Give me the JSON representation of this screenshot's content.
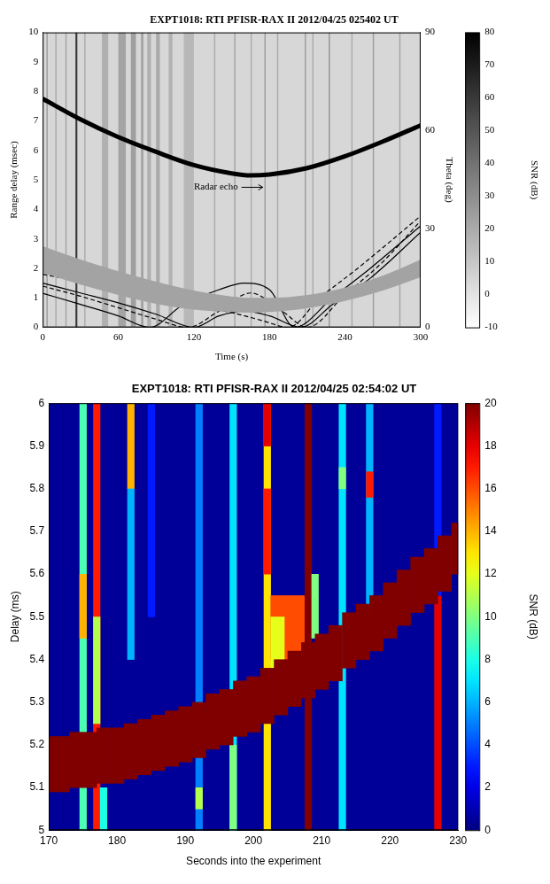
{
  "chart_data": [
    {
      "type": "line",
      "title": "EXPT1018: RTI PFISR-RAX II 2012/04/25 025402 UT",
      "x_label": "Time (s)",
      "y_label": "Range delay (msec)",
      "y2_label": "Theta (deg)",
      "xlim": [
        0,
        300
      ],
      "xticks": [
        0,
        60,
        120,
        180,
        240,
        300
      ],
      "ylim": [
        0,
        10
      ],
      "yticks": [
        0,
        1,
        2,
        3,
        4,
        5,
        6,
        7,
        8,
        9,
        10
      ],
      "y2lim": [
        0,
        90
      ],
      "y2ticks": [
        0,
        30,
        60,
        90
      ],
      "grid": false,
      "colorbar": {
        "label": "SNR (dB)",
        "range": [
          -10,
          80
        ],
        "ticks": [
          -10,
          0,
          10,
          20,
          30,
          40,
          50,
          60,
          70,
          80
        ]
      },
      "stripes": [
        {
          "x": [
            0,
            300
          ],
          "snr": 4
        },
        {
          "x": [
            3,
            4
          ],
          "snr": 25
        },
        {
          "x": [
            10,
            11
          ],
          "snr": 20
        },
        {
          "x": [
            18,
            19
          ],
          "snr": 22
        },
        {
          "x": [
            26,
            27.5
          ],
          "snr": 60
        },
        {
          "x": [
            33,
            34
          ],
          "snr": 20
        },
        {
          "x": [
            47,
            52
          ],
          "snr": 18
        },
        {
          "x": [
            60,
            66
          ],
          "snr": 22
        },
        {
          "x": [
            70,
            74
          ],
          "snr": 24
        },
        {
          "x": [
            78,
            80
          ],
          "snr": 22
        },
        {
          "x": [
            83,
            86
          ],
          "snr": 18
        },
        {
          "x": [
            90,
            93
          ],
          "snr": 20
        },
        {
          "x": [
            100,
            103
          ],
          "snr": 17
        },
        {
          "x": [
            112,
            120
          ],
          "snr": 15
        },
        {
          "x": [
            136,
            137
          ],
          "snr": 20
        },
        {
          "x": [
            152,
            153
          ],
          "snr": 22
        },
        {
          "x": [
            165,
            166
          ],
          "snr": 20
        },
        {
          "x": [
            176,
            177
          ],
          "snr": 25
        },
        {
          "x": [
            186,
            187
          ],
          "snr": 20
        },
        {
          "x": [
            208,
            209
          ],
          "snr": 25
        },
        {
          "x": [
            214,
            215
          ],
          "snr": 20
        },
        {
          "x": [
            227,
            228
          ],
          "snr": 28
        },
        {
          "x": [
            245,
            246
          ],
          "snr": 20
        },
        {
          "x": [
            262,
            263
          ],
          "snr": 25
        },
        {
          "x": [
            283,
            284
          ],
          "snr": 22
        }
      ],
      "band": {
        "x": [
          0,
          30,
          60,
          90,
          120,
          150,
          165,
          180,
          210,
          240,
          270,
          300
        ],
        "lower": [
          1.85,
          1.45,
          1.1,
          0.8,
          0.6,
          0.52,
          0.5,
          0.52,
          0.65,
          0.9,
          1.25,
          1.7
        ],
        "upper": [
          2.75,
          2.3,
          1.9,
          1.55,
          1.25,
          1.05,
          1.0,
          1.0,
          1.1,
          1.35,
          1.75,
          2.3
        ],
        "color": "#a3a3a3"
      },
      "series": [
        {
          "x": [
            0,
            30,
            60,
            90,
            120,
            150,
            165,
            180,
            210,
            240,
            270,
            300
          ],
          "values": [
            7.75,
            7.05,
            6.45,
            5.95,
            5.5,
            5.22,
            5.15,
            5.18,
            5.4,
            5.8,
            6.3,
            6.85
          ],
          "color": "#000000",
          "line_style": "solid"
        },
        {
          "x": [
            0,
            30,
            60,
            85,
            110,
            140,
            160,
            180,
            200,
            230,
            260,
            300
          ],
          "values": [
            10.4,
            7,
            3.5,
            0,
            6.5,
            11.5,
            13.5,
            11.5,
            0,
            9,
            18,
            31
          ],
          "color": "#000000",
          "line_style": "solid",
          "axis": "y2"
        },
        {
          "x": [
            0,
            30,
            60,
            90,
            120,
            140,
            160,
            180,
            205,
            230,
            260,
            300
          ],
          "values": [
            13.5,
            10.5,
            7.5,
            4,
            0,
            3.5,
            5,
            3.5,
            0,
            7,
            15,
            29
          ],
          "color": "#000000",
          "line_style": "solid",
          "axis": "y2"
        },
        {
          "x": [
            0,
            30,
            60,
            90,
            120,
            150,
            175,
            195,
            220,
            250,
            300
          ],
          "values": [
            16.2,
            14,
            11.5,
            9,
            6.5,
            4.5,
            2,
            0,
            9,
            18,
            34
          ],
          "color": "#000000",
          "line_style": "dashed",
          "axis": "y2"
        },
        {
          "x": [
            0,
            30,
            60,
            90,
            115,
            140,
            165,
            190,
            210,
            240,
            270,
            300
          ],
          "values": [
            12.6,
            9.5,
            6,
            2.5,
            0,
            5,
            10.5,
            5,
            0,
            10,
            20,
            32.5
          ],
          "color": "#000000",
          "line_style": "dashed",
          "axis": "y2"
        }
      ],
      "annotations": [
        {
          "text": "Radar echo",
          "x": 120,
          "y": 4.75
        }
      ]
    },
    {
      "type": "heatmap",
      "title": "EXPT1018: RTI PFISR-RAX II 2012/04/25 02:54:02 UT",
      "x_label": "Seconds into the experiment",
      "y_label": "Delay (ms)",
      "xlim": [
        170,
        230
      ],
      "xticks": [
        170,
        180,
        190,
        200,
        210,
        220,
        230
      ],
      "ylim": [
        5,
        6
      ],
      "yticks": [
        5,
        5.1,
        5.2,
        5.3,
        5.4,
        5.5,
        5.6,
        5.7,
        5.8,
        5.9,
        6
      ],
      "grid": false,
      "colorbar": {
        "label": "SNR (dB)",
        "range": [
          0,
          20
        ],
        "ticks": [
          0,
          2,
          4,
          6,
          8,
          10,
          12,
          14,
          16,
          18,
          20
        ]
      },
      "cells": [
        {
          "x": [
            170,
            230
          ],
          "y": [
            5,
            6
          ],
          "snr": 0.5
        },
        {
          "x": [
            174.5,
            175.5
          ],
          "y": [
            5,
            6
          ],
          "snr": 9
        },
        {
          "x": [
            174.5,
            175.5
          ],
          "y": [
            5.45,
            5.6
          ],
          "snr": 14
        },
        {
          "x": [
            176.5,
            177.5
          ],
          "y": [
            5,
            6
          ],
          "snr": 17
        },
        {
          "x": [
            176.5,
            177.5
          ],
          "y": [
            5.25,
            5.5
          ],
          "snr": 11
        },
        {
          "x": [
            177.5,
            178.5
          ],
          "y": [
            5,
            5.1
          ],
          "snr": 8
        },
        {
          "x": [
            181.5,
            182.5
          ],
          "y": [
            5.8,
            6
          ],
          "snr": 14
        },
        {
          "x": [
            181.5,
            182.5
          ],
          "y": [
            5.4,
            5.8
          ],
          "snr": 6
        },
        {
          "x": [
            184.5,
            185.5
          ],
          "y": [
            5.5,
            6
          ],
          "snr": 3
        },
        {
          "x": [
            191.5,
            192.5
          ],
          "y": [
            5,
            6
          ],
          "snr": 5
        },
        {
          "x": [
            191.5,
            192.5
          ],
          "y": [
            5.05,
            5.1
          ],
          "snr": 11
        },
        {
          "x": [
            196.5,
            197.5
          ],
          "y": [
            5,
            6
          ],
          "snr": 7
        },
        {
          "x": [
            196.5,
            197.5
          ],
          "y": [
            5,
            5.2
          ],
          "snr": 10
        },
        {
          "x": [
            201.5,
            202.5
          ],
          "y": [
            5,
            6
          ],
          "snr": 13
        },
        {
          "x": [
            201.5,
            202.5
          ],
          "y": [
            5.9,
            6
          ],
          "snr": 18
        },
        {
          "x": [
            201.5,
            202.5
          ],
          "y": [
            5.6,
            5.8
          ],
          "snr": 17
        },
        {
          "x": [
            202.5,
            207.5
          ],
          "y": [
            5.4,
            5.55
          ],
          "snr": 16
        },
        {
          "x": [
            202.5,
            204.5
          ],
          "y": [
            5.38,
            5.5
          ],
          "snr": 12
        },
        {
          "x": [
            207.5,
            208.5
          ],
          "y": [
            5,
            6
          ],
          "snr": 20
        },
        {
          "x": [
            208.5,
            209.5
          ],
          "y": [
            5.45,
            5.6
          ],
          "snr": 10
        },
        {
          "x": [
            212.5,
            213.5
          ],
          "y": [
            5,
            6
          ],
          "snr": 7
        },
        {
          "x": [
            212.5,
            213.5
          ],
          "y": [
            5.8,
            5.85
          ],
          "snr": 10
        },
        {
          "x": [
            216.5,
            217.5
          ],
          "y": [
            5.5,
            6
          ],
          "snr": 6
        },
        {
          "x": [
            216.5,
            217.5
          ],
          "y": [
            5.78,
            5.84
          ],
          "snr": 17
        },
        {
          "x": [
            226.5,
            227.5
          ],
          "y": [
            5,
            5.55
          ],
          "snr": 18
        },
        {
          "x": [
            226.5,
            227.5
          ],
          "y": [
            5.55,
            6
          ],
          "snr": 3
        }
      ],
      "echo": {
        "x": [
          170,
          172,
          174,
          176,
          178,
          180,
          182,
          184,
          186,
          188,
          190,
          192,
          194,
          196,
          198,
          200,
          202,
          204,
          206,
          208,
          210,
          212,
          214,
          216,
          218,
          220,
          222,
          224,
          226,
          228,
          230
        ],
        "lower": [
          5.09,
          5.09,
          5.1,
          5.1,
          5.11,
          5.11,
          5.12,
          5.13,
          5.14,
          5.15,
          5.16,
          5.17,
          5.19,
          5.2,
          5.22,
          5.23,
          5.25,
          5.27,
          5.29,
          5.31,
          5.33,
          5.35,
          5.38,
          5.4,
          5.42,
          5.45,
          5.48,
          5.51,
          5.53,
          5.56,
          5.6
        ],
        "upper": [
          5.22,
          5.22,
          5.23,
          5.23,
          5.24,
          5.24,
          5.25,
          5.26,
          5.27,
          5.28,
          5.29,
          5.3,
          5.32,
          5.33,
          5.35,
          5.36,
          5.38,
          5.4,
          5.42,
          5.44,
          5.46,
          5.48,
          5.51,
          5.53,
          5.55,
          5.58,
          5.61,
          5.64,
          5.66,
          5.69,
          5.72
        ],
        "snr": 20
      }
    }
  ]
}
